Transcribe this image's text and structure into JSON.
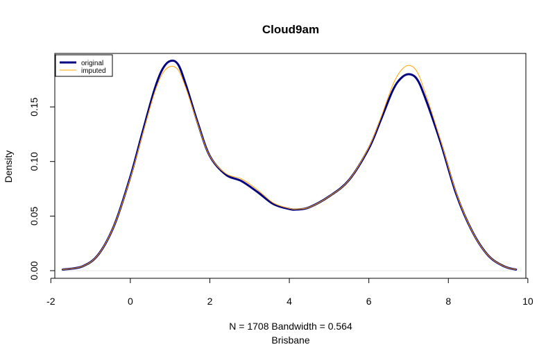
{
  "chart_data": {
    "type": "line",
    "title": "Cloud9am",
    "xlabel": "N = 1708   Bandwidth = 0.564",
    "xlabel2": "Brisbane",
    "ylabel": "Density",
    "xlim": [
      -1.9,
      9.95
    ],
    "ylim": [
      -0.007,
      0.199
    ],
    "x_ticks": [
      -2,
      0,
      2,
      4,
      6,
      8,
      10
    ],
    "x_tick_labels": [
      "-2",
      "0",
      "2",
      "4",
      "6",
      "8",
      "10"
    ],
    "y_ticks": [
      0.0,
      0.05,
      0.1,
      0.15
    ],
    "y_tick_labels": [
      "0.00",
      "0.05",
      "0.10",
      "0.15"
    ],
    "grid": false,
    "legend_position": "top-left",
    "series": [
      {
        "name": "original",
        "color": "#000080",
        "x": [
          -1.7,
          -1.2,
          -0.8,
          -0.4,
          0.0,
          0.3,
          0.6,
          0.8,
          1.0,
          1.2,
          1.4,
          1.7,
          2.0,
          2.4,
          2.8,
          3.2,
          3.6,
          4.0,
          4.2,
          4.5,
          5.0,
          5.5,
          6.0,
          6.3,
          6.6,
          6.8,
          7.0,
          7.2,
          7.4,
          7.8,
          8.2,
          8.6,
          9.0,
          9.4,
          9.7
        ],
        "y": [
          0.001,
          0.004,
          0.015,
          0.042,
          0.086,
          0.126,
          0.165,
          0.184,
          0.192,
          0.189,
          0.17,
          0.135,
          0.105,
          0.088,
          0.082,
          0.072,
          0.061,
          0.0565,
          0.056,
          0.058,
          0.068,
          0.083,
          0.112,
          0.138,
          0.165,
          0.176,
          0.18,
          0.176,
          0.16,
          0.118,
          0.07,
          0.036,
          0.014,
          0.004,
          0.001
        ]
      },
      {
        "name": "imputed",
        "color": "#FFA500",
        "x": [
          -1.7,
          -1.2,
          -0.8,
          -0.4,
          0.0,
          0.3,
          0.6,
          0.8,
          1.0,
          1.2,
          1.4,
          1.7,
          2.0,
          2.4,
          2.8,
          3.2,
          3.6,
          4.0,
          4.2,
          4.5,
          5.0,
          5.5,
          6.0,
          6.3,
          6.6,
          6.8,
          7.0,
          7.2,
          7.4,
          7.8,
          8.2,
          8.6,
          9.0,
          9.4,
          9.7
        ],
        "y": [
          0.001,
          0.004,
          0.015,
          0.042,
          0.085,
          0.124,
          0.162,
          0.18,
          0.187,
          0.184,
          0.167,
          0.134,
          0.105,
          0.089,
          0.084,
          0.074,
          0.062,
          0.057,
          0.0565,
          0.058,
          0.068,
          0.083,
          0.113,
          0.14,
          0.17,
          0.183,
          0.188,
          0.183,
          0.165,
          0.12,
          0.071,
          0.036,
          0.014,
          0.004,
          0.001
        ]
      }
    ]
  }
}
